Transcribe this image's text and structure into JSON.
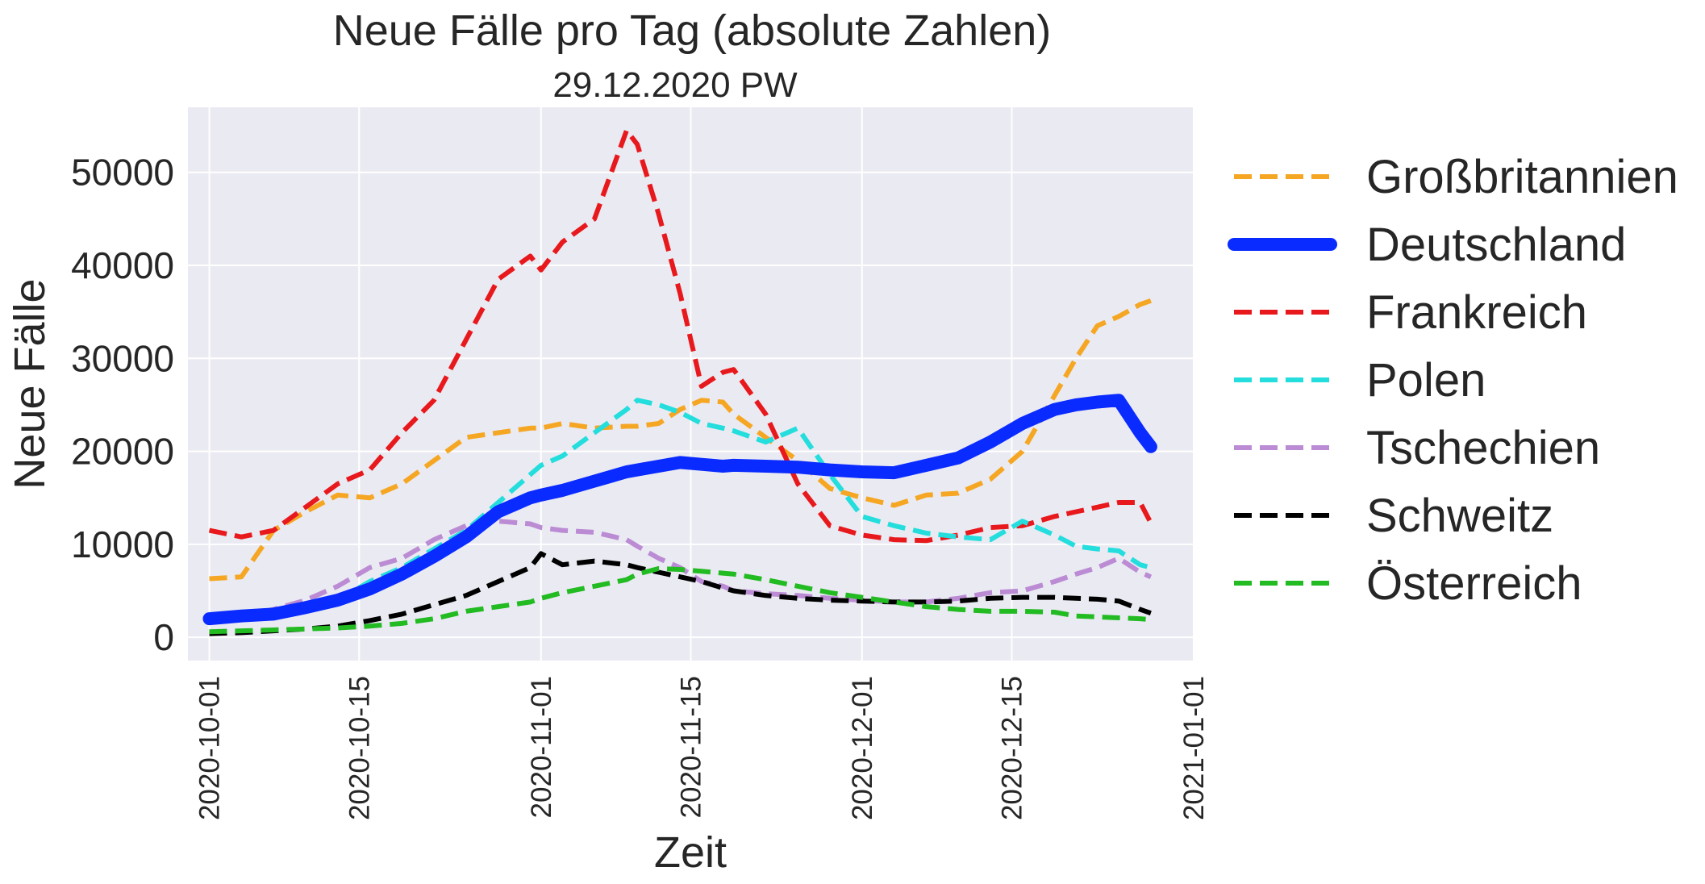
{
  "chart_data": {
    "type": "line",
    "title": "Neue Fälle pro Tag (absolute Zahlen)",
    "subtitle": "29.12.2020 PW",
    "xlabel": "Zeit",
    "ylabel": "Neue Fälle",
    "xlim": [
      "2020-09-29",
      "2021-01-01"
    ],
    "ylim": [
      -2500,
      57000
    ],
    "yticks": [
      0,
      10000,
      20000,
      30000,
      40000,
      50000
    ],
    "xticks": [
      "2020-10-01",
      "2020-10-15",
      "2020-11-01",
      "2020-11-15",
      "2020-12-01",
      "2020-12-15",
      "2021-01-01"
    ],
    "grid": true,
    "legend_position": "outside-right",
    "x": [
      "2020-10-01",
      "2020-10-04",
      "2020-10-07",
      "2020-10-10",
      "2020-10-13",
      "2020-10-16",
      "2020-10-19",
      "2020-10-22",
      "2020-10-25",
      "2020-10-28",
      "2020-10-31",
      "2020-11-01",
      "2020-11-03",
      "2020-11-06",
      "2020-11-09",
      "2020-11-10",
      "2020-11-12",
      "2020-11-14",
      "2020-11-16",
      "2020-11-18",
      "2020-11-19",
      "2020-11-22",
      "2020-11-25",
      "2020-11-28",
      "2020-12-01",
      "2020-12-04",
      "2020-12-07",
      "2020-12-10",
      "2020-12-13",
      "2020-12-16",
      "2020-12-19",
      "2020-12-21",
      "2020-12-23",
      "2020-12-25",
      "2020-12-27",
      "2020-12-28"
    ],
    "series": [
      {
        "name": "Großbritannien",
        "color": "#f5a623",
        "style": "dashed",
        "values": [
          6300,
          6500,
          11500,
          13500,
          15300,
          15000,
          16500,
          19000,
          21500,
          22000,
          22500,
          22500,
          23000,
          22500,
          22700,
          22700,
          23000,
          24500,
          25500,
          25300,
          24000,
          21500,
          19000,
          16000,
          15000,
          14200,
          15300,
          15500,
          17000,
          20000,
          26000,
          30000,
          33500,
          34500,
          35800,
          36200
        ]
      },
      {
        "name": "Deutschland",
        "color": "#0a2bff",
        "style": "solid",
        "values": [
          2000,
          2300,
          2500,
          3200,
          4000,
          5200,
          6800,
          8700,
          10800,
          13500,
          15000,
          15300,
          15800,
          16800,
          17800,
          18000,
          18400,
          18800,
          18600,
          18400,
          18500,
          18400,
          18300,
          18000,
          17800,
          17700,
          18500,
          19300,
          21000,
          23000,
          24500,
          25000,
          25300,
          25500,
          22000,
          20500
        ]
      },
      {
        "name": "Frankreich",
        "color": "#e8191d",
        "style": "dashed",
        "values": [
          11500,
          10800,
          11500,
          14000,
          16500,
          18000,
          22000,
          25500,
          32000,
          38500,
          41000,
          39500,
          42500,
          45000,
          54500,
          53000,
          45500,
          37000,
          27000,
          28500,
          28800,
          24000,
          16500,
          12000,
          11000,
          10500,
          10400,
          11000,
          11800,
          12000,
          13000,
          13500,
          14000,
          14500,
          14500,
          12300
        ]
      },
      {
        "name": "Polen",
        "color": "#24dddd",
        "style": "dashed",
        "values": [
          1800,
          1900,
          2200,
          2800,
          4000,
          6000,
          7500,
          9500,
          11500,
          14500,
          17500,
          18500,
          19500,
          22000,
          24500,
          25500,
          25000,
          24200,
          23000,
          22500,
          22200,
          21000,
          22500,
          17500,
          13000,
          12000,
          11200,
          10800,
          10500,
          12500,
          11000,
          9800,
          9500,
          9300,
          7800,
          7500
        ]
      },
      {
        "name": "Tschechien",
        "color": "#bb8bd4",
        "style": "dashed",
        "values": [
          2000,
          2300,
          3000,
          4000,
          5500,
          7500,
          8500,
          10500,
          12000,
          12500,
          12200,
          11800,
          11500,
          11300,
          10500,
          9800,
          8500,
          7500,
          6000,
          5500,
          5000,
          4700,
          4500,
          4200,
          4000,
          3800,
          3800,
          4200,
          4800,
          5000,
          6000,
          6800,
          7500,
          8500,
          7000,
          6500
        ]
      },
      {
        "name": "Schweitz",
        "color": "#000000",
        "style": "dashed",
        "values": [
          400,
          500,
          700,
          900,
          1200,
          1800,
          2500,
          3500,
          4500,
          6000,
          7500,
          9000,
          7800,
          8200,
          7800,
          7500,
          7000,
          6500,
          6000,
          5300,
          5000,
          4500,
          4200,
          4000,
          3900,
          3800,
          3800,
          3900,
          4200,
          4300,
          4300,
          4200,
          4100,
          3900,
          3000,
          2600
        ]
      },
      {
        "name": "Österreich",
        "color": "#22bb22",
        "style": "dashed",
        "values": [
          600,
          700,
          800,
          900,
          1000,
          1200,
          1500,
          2000,
          2800,
          3300,
          3800,
          4200,
          4800,
          5500,
          6200,
          6800,
          7400,
          7300,
          7100,
          6900,
          6800,
          6200,
          5500,
          4800,
          4300,
          3800,
          3300,
          3000,
          2800,
          2800,
          2700,
          2300,
          2200,
          2100,
          2000,
          1900
        ]
      }
    ]
  }
}
